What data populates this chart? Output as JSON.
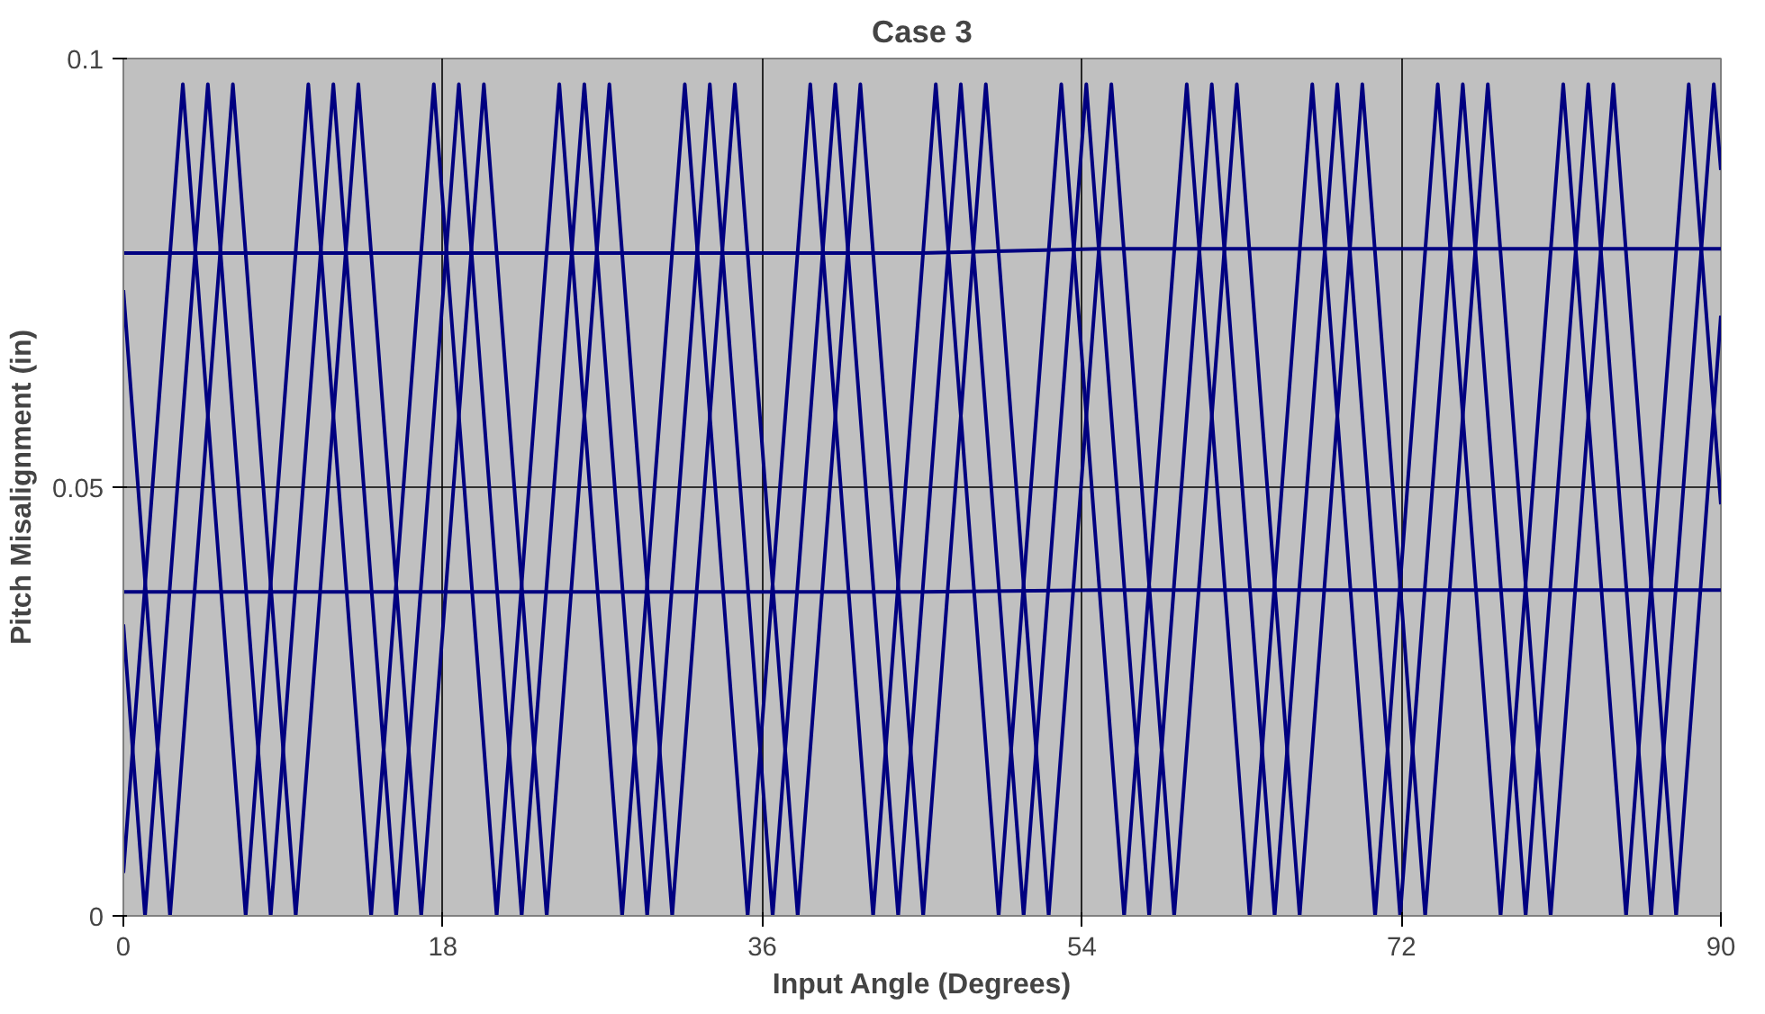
{
  "chart_data": {
    "type": "line",
    "title": "Case 3",
    "xlabel": "Input Angle (Degrees)",
    "ylabel": "Pitch Misalignment (in)",
    "xlim": [
      0,
      90
    ],
    "xticks": [
      0,
      18,
      36,
      54,
      72,
      90
    ],
    "ylim": [
      0,
      0.1
    ],
    "yticks": [
      0,
      0.05,
      0.1
    ],
    "grid": true,
    "marker": "none",
    "line_style": "solid",
    "series": [
      {
        "color": "#000080",
        "x": [
          0,
          3.35,
          6.89,
          10.42,
          13.96,
          17.49,
          21.03,
          24.56,
          28.1,
          31.63,
          35.17,
          38.7,
          42.24,
          45.77,
          49.31,
          52.84,
          56.38,
          59.91,
          63.45,
          66.98,
          70.52,
          74.05,
          77.59,
          81.12,
          84.66,
          88.19,
          90
        ],
        "values": [
          0.005,
          0.097,
          0,
          0.097,
          0,
          0.097,
          0,
          0.097,
          0,
          0.097,
          0,
          0.097,
          0,
          0.097,
          0,
          0.097,
          0,
          0.097,
          0,
          0.097,
          0,
          0.097,
          0,
          0.097,
          0,
          0.097,
          0.048
        ]
      },
      {
        "color": "#000080",
        "x": [
          0,
          1.22,
          4.76,
          8.3,
          11.83,
          15.37,
          18.9,
          22.44,
          25.97,
          29.51,
          33.04,
          36.58,
          40.11,
          43.65,
          47.18,
          50.72,
          54.25,
          57.79,
          61.32,
          64.86,
          68.39,
          71.93,
          75.46,
          79.0,
          82.53,
          86.07,
          89.6,
          90
        ],
        "values": [
          0.034,
          0,
          0.097,
          0,
          0.097,
          0,
          0.097,
          0,
          0.097,
          0,
          0.097,
          0,
          0.097,
          0,
          0.097,
          0,
          0.097,
          0,
          0.097,
          0,
          0.097,
          0,
          0.097,
          0,
          0.097,
          0,
          0.097,
          0.087
        ]
      },
      {
        "color": "#000080",
        "x": [
          0,
          2.63,
          6.17,
          9.71,
          13.24,
          16.78,
          20.31,
          23.85,
          27.38,
          30.92,
          34.45,
          37.99,
          41.52,
          45.06,
          48.59,
          52.13,
          55.66,
          59.2,
          62.73,
          66.27,
          69.8,
          73.34,
          76.87,
          80.41,
          83.94,
          87.48,
          90
        ],
        "values": [
          0.073,
          0,
          0.097,
          0,
          0.097,
          0,
          0.097,
          0,
          0.097,
          0,
          0.097,
          0,
          0.097,
          0,
          0.097,
          0,
          0.097,
          0,
          0.097,
          0,
          0.097,
          0,
          0.097,
          0,
          0.097,
          0,
          0.07
        ]
      },
      {
        "color": "#000080",
        "x": [
          0,
          45,
          55,
          90
        ],
        "values": [
          0.0773,
          0.0773,
          0.0778,
          0.0778
        ]
      },
      {
        "color": "#000080",
        "x": [
          0,
          45,
          55,
          90
        ],
        "values": [
          0.0378,
          0.0378,
          0.038,
          0.038
        ]
      }
    ]
  }
}
